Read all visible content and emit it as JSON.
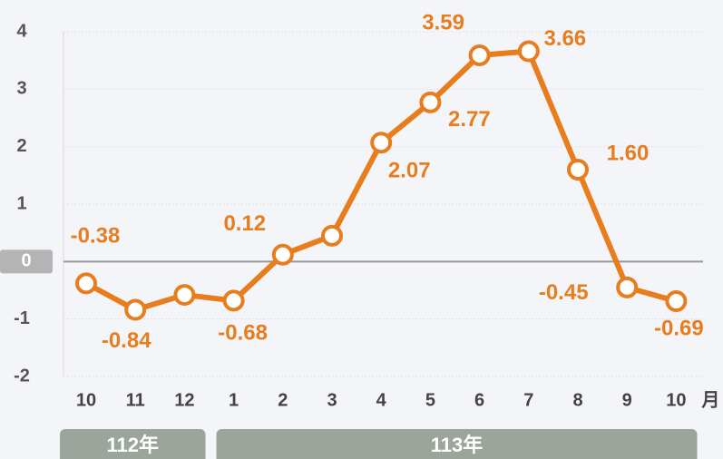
{
  "chart_data": {
    "type": "line",
    "categories": [
      "10",
      "11",
      "12",
      "1",
      "2",
      "3",
      "4",
      "5",
      "6",
      "7",
      "8",
      "9",
      "10"
    ],
    "x_unit": "月",
    "groups": [
      {
        "label": "112年",
        "span": 3
      },
      {
        "label": "113年",
        "span": 10
      }
    ],
    "series": [
      {
        "color": "#e87d1e",
        "values": [
          -0.38,
          -0.84,
          -0.58,
          -0.68,
          0.12,
          0.45,
          2.07,
          2.77,
          3.59,
          3.66,
          1.6,
          -0.45,
          -0.69
        ],
        "value_labels": [
          "-0.38",
          "-0.84",
          null,
          "-0.68",
          "0.12",
          null,
          "2.07",
          "2.77",
          "3.59",
          "3.66",
          "1.60",
          "-0.45",
          "-0.69"
        ]
      }
    ],
    "ylim": [
      -2,
      4
    ],
    "yticks": [
      -2,
      -1,
      0,
      1,
      2,
      3,
      4
    ],
    "grid": true
  }
}
